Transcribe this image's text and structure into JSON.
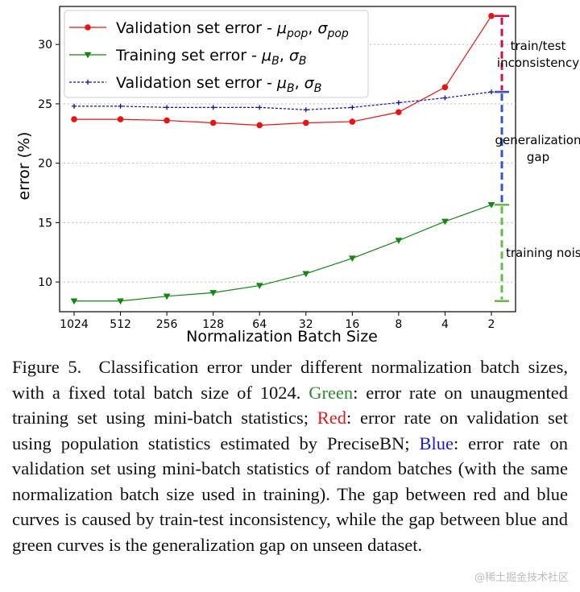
{
  "chart_data": {
    "type": "line",
    "ylabel": "error (%)",
    "xlabel": "Normalization Batch Size",
    "categories": [
      "1024",
      "512",
      "256",
      "128",
      "64",
      "32",
      "16",
      "8",
      "4",
      "2"
    ],
    "yticks": [
      10,
      15,
      20,
      25,
      30
    ],
    "ylim": [
      7.5,
      33.2
    ],
    "grid": "horizontal dotted",
    "legend_position": "top-left",
    "series": [
      {
        "id": "red",
        "name": "Validation set error - ",
        "symbol": "μ",
        "sub1": "pop",
        "symbol2": "σ",
        "sub2": "pop",
        "color": "#ee1111",
        "marker": "circle",
        "line_style": "solid",
        "values": [
          23.7,
          23.7,
          23.6,
          23.4,
          23.2,
          23.4,
          23.5,
          24.3,
          26.4,
          32.4
        ]
      },
      {
        "id": "green",
        "name": "Training set error - ",
        "symbol": "μ",
        "sub1": "B",
        "symbol2": "σ",
        "sub2": "B",
        "color": "#118811",
        "marker": "triangle-down",
        "line_style": "solid",
        "values": [
          8.4,
          8.4,
          8.8,
          9.1,
          9.7,
          10.7,
          12.0,
          13.5,
          15.1,
          16.5
        ]
      },
      {
        "id": "blue",
        "name": "Validation set error - ",
        "symbol": "μ",
        "sub1": "B",
        "symbol2": "σ",
        "sub2": "B",
        "color": "#1111aa",
        "marker": "plus",
        "line_style": "dashed",
        "values": [
          24.8,
          24.8,
          24.7,
          24.7,
          24.7,
          24.5,
          24.7,
          25.1,
          25.5,
          26.0
        ]
      }
    ],
    "annotations": [
      {
        "id": "train-test",
        "lines": [
          "train/test",
          "inconsistency"
        ],
        "from": 32.4,
        "to": 26.0,
        "color": "#cc1144"
      },
      {
        "id": "generalization",
        "lines": [
          "generalization",
          "gap"
        ],
        "from": 26.0,
        "to": 16.5,
        "color": "#3355cc"
      },
      {
        "id": "training-noise",
        "lines": [
          "training noise"
        ],
        "from": 16.5,
        "to": 8.4,
        "color": "#66bb44"
      }
    ]
  },
  "caption": {
    "label": "Figure 5.",
    "text1": "Classification error under different normalization batch sizes, with a fixed total batch size of 1024.",
    "green_word": "Green",
    "text2": ": error rate on unaugmented training set using mini-batch statistics;",
    "red_word": "Red",
    "text3": ": error rate on validation set using population statistics estimated by Pre­ciseBN;",
    "blue_word": "Blue",
    "text4": ": error rate on validation set using mini-batch statis­tics of random batches (with the same normalization batch size used in training). The gap between red and blue curves is caused by train-test inconsistency, while the gap between blue and green curves is the generalization gap on unseen dataset."
  },
  "watermark": "@稀土掘金技术社区"
}
